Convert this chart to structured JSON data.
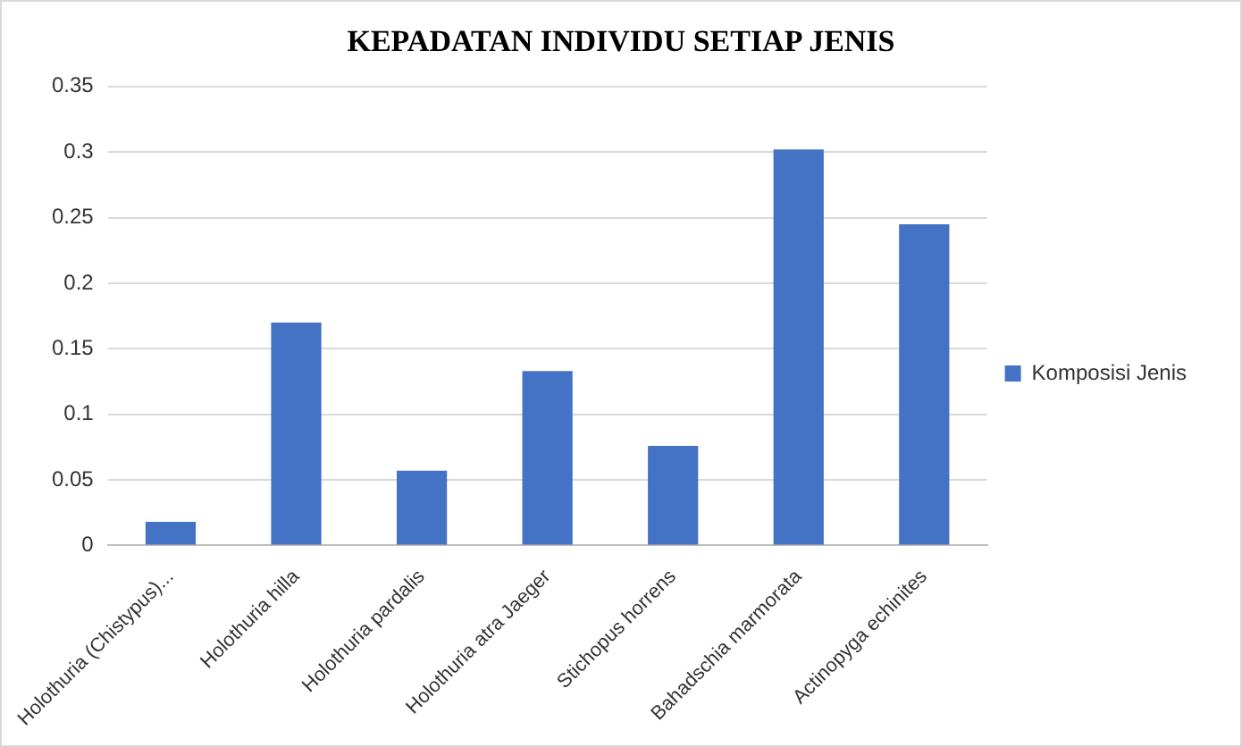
{
  "chart_data": {
    "type": "bar",
    "title": "KEPADATAN INDIVIDU SETIAP JENIS",
    "categories": [
      "Holothuria (Chistypus)...",
      "Holothuria hilla",
      "Holothuria pardalis",
      "Holothuria atra Jaeger",
      "Stichopus horrens",
      "Bahadschia marmorata",
      "Actinopyga echinites"
    ],
    "series": [
      {
        "name": "Komposisi Jenis",
        "color": "#4472c4",
        "values": [
          0.018,
          0.17,
          0.057,
          0.133,
          0.076,
          0.302,
          0.245
        ]
      }
    ],
    "ylim": [
      0,
      0.35
    ],
    "yticks": [
      0,
      0.05,
      0.1,
      0.15,
      0.2,
      0.25,
      0.3,
      0.35
    ],
    "grid": "y",
    "legend": "right"
  }
}
